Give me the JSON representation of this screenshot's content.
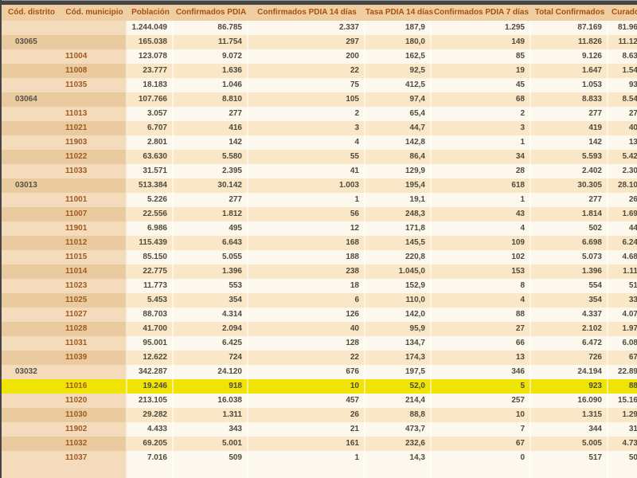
{
  "app": {
    "description_label": "COVID municipal statistics table (Spanish)",
    "selected_row_municipio": "11016"
  },
  "colors": {
    "window_edge": "#454545",
    "header_bg": "#EFCEA3",
    "header_text": "#A5520E",
    "tan_light": "#F3DBBC",
    "tan_dark": "#EACA9F",
    "data_light": "#FDF8ED",
    "data_dark": "#FAE7C7",
    "highlight_yellow": "#F0E306",
    "number_text": "#4F4A3B",
    "municipio_text": "#A15A1E",
    "district_text": "#57524A"
  },
  "table": {
    "columns": [
      {
        "key": "distrito",
        "label": "Cód. distrito"
      },
      {
        "key": "municipio",
        "label": "Cód. municipio"
      },
      {
        "key": "poblacion",
        "label": "Población"
      },
      {
        "key": "confirmados_pdia",
        "label": "Confirmados PDIA"
      },
      {
        "key": "confirmados_pdia_14",
        "label": "Confirmados PDIA 14 días"
      },
      {
        "key": "tasa_pdia_14",
        "label": "Tasa PDIA 14 días"
      },
      {
        "key": "confirmados_pdia_7",
        "label": "Confirmados PDIA 7 días"
      },
      {
        "key": "total_confirmados",
        "label": "Total Confirmados"
      },
      {
        "key": "curados",
        "label": "Curados"
      }
    ],
    "note": "Last column is clipped by the right screen edge; curados values are the visible partial digits only.",
    "rows": [
      {
        "cells": [
          "",
          "",
          "1.244.049",
          "86.785",
          "2.337",
          "187,9",
          "1.295",
          "87.169",
          "81.96"
        ],
        "highlight": false
      },
      {
        "cells": [
          "03065",
          "",
          "165.038",
          "11.754",
          "297",
          "180,0",
          "149",
          "11.826",
          "11.12"
        ],
        "highlight": false
      },
      {
        "cells": [
          "",
          "11004",
          "123.078",
          "9.072",
          "200",
          "162,5",
          "85",
          "9.126",
          "8.63"
        ],
        "highlight": false
      },
      {
        "cells": [
          "",
          "11008",
          "23.777",
          "1.636",
          "22",
          "92,5",
          "19",
          "1.647",
          "1.54"
        ],
        "highlight": false
      },
      {
        "cells": [
          "",
          "11035",
          "18.183",
          "1.046",
          "75",
          "412,5",
          "45",
          "1.053",
          "93"
        ],
        "highlight": false
      },
      {
        "cells": [
          "03064",
          "",
          "107.766",
          "8.810",
          "105",
          "97,4",
          "68",
          "8.833",
          "8.54"
        ],
        "highlight": false
      },
      {
        "cells": [
          "",
          "11013",
          "3.057",
          "277",
          "2",
          "65,4",
          "2",
          "277",
          "27"
        ],
        "highlight": false
      },
      {
        "cells": [
          "",
          "11021",
          "6.707",
          "416",
          "3",
          "44,7",
          "3",
          "419",
          "40"
        ],
        "highlight": false
      },
      {
        "cells": [
          "",
          "11903",
          "2.801",
          "142",
          "4",
          "142,8",
          "1",
          "142",
          "13"
        ],
        "highlight": false
      },
      {
        "cells": [
          "",
          "11022",
          "63.630",
          "5.580",
          "55",
          "86,4",
          "34",
          "5.593",
          "5.42"
        ],
        "highlight": false
      },
      {
        "cells": [
          "",
          "11033",
          "31.571",
          "2.395",
          "41",
          "129,9",
          "28",
          "2.402",
          "2.30"
        ],
        "highlight": false
      },
      {
        "cells": [
          "03013",
          "",
          "513.384",
          "30.142",
          "1.003",
          "195,4",
          "618",
          "30.305",
          "28.10"
        ],
        "highlight": false
      },
      {
        "cells": [
          "",
          "11001",
          "5.226",
          "277",
          "1",
          "19,1",
          "1",
          "277",
          "26"
        ],
        "highlight": false
      },
      {
        "cells": [
          "",
          "11007",
          "22.556",
          "1.812",
          "56",
          "248,3",
          "43",
          "1.814",
          "1.69"
        ],
        "highlight": false
      },
      {
        "cells": [
          "",
          "11901",
          "6.986",
          "495",
          "12",
          "171,8",
          "4",
          "502",
          "44"
        ],
        "highlight": false
      },
      {
        "cells": [
          "",
          "11012",
          "115.439",
          "6.643",
          "168",
          "145,5",
          "109",
          "6.698",
          "6.24"
        ],
        "highlight": false
      },
      {
        "cells": [
          "",
          "11015",
          "85.150",
          "5.055",
          "188",
          "220,8",
          "102",
          "5.073",
          "4.68"
        ],
        "highlight": false
      },
      {
        "cells": [
          "",
          "11014",
          "22.775",
          "1.396",
          "238",
          "1.045,0",
          "153",
          "1.396",
          "1.11"
        ],
        "highlight": false
      },
      {
        "cells": [
          "",
          "11023",
          "11.773",
          "553",
          "18",
          "152,9",
          "8",
          "554",
          "51"
        ],
        "highlight": false
      },
      {
        "cells": [
          "",
          "11025",
          "5.453",
          "354",
          "6",
          "110,0",
          "4",
          "354",
          "33"
        ],
        "highlight": false
      },
      {
        "cells": [
          "",
          "11027",
          "88.703",
          "4.314",
          "126",
          "142,0",
          "88",
          "4.337",
          "4.07"
        ],
        "highlight": false
      },
      {
        "cells": [
          "",
          "11028",
          "41.700",
          "2.094",
          "40",
          "95,9",
          "27",
          "2.102",
          "1.97"
        ],
        "highlight": false
      },
      {
        "cells": [
          "",
          "11031",
          "95.001",
          "6.425",
          "128",
          "134,7",
          "66",
          "6.472",
          "6.08"
        ],
        "highlight": false
      },
      {
        "cells": [
          "",
          "11039",
          "12.622",
          "724",
          "22",
          "174,3",
          "13",
          "726",
          "67"
        ],
        "highlight": false
      },
      {
        "cells": [
          "03032",
          "",
          "342.287",
          "24.120",
          "676",
          "197,5",
          "346",
          "24.194",
          "22.89"
        ],
        "highlight": false
      },
      {
        "cells": [
          "",
          "11016",
          "19.246",
          "918",
          "10",
          "52,0",
          "5",
          "923",
          "88"
        ],
        "highlight": true
      },
      {
        "cells": [
          "",
          "11020",
          "213.105",
          "16.038",
          "457",
          "214,4",
          "257",
          "16.090",
          "15.16"
        ],
        "highlight": false
      },
      {
        "cells": [
          "",
          "11030",
          "29.282",
          "1.311",
          "26",
          "88,8",
          "10",
          "1.315",
          "1.29"
        ],
        "highlight": false
      },
      {
        "cells": [
          "",
          "11902",
          "4.433",
          "343",
          "21",
          "473,7",
          "7",
          "344",
          "31"
        ],
        "highlight": false
      },
      {
        "cells": [
          "",
          "11032",
          "69.205",
          "5.001",
          "161",
          "232,6",
          "67",
          "5.005",
          "4.73"
        ],
        "highlight": false
      },
      {
        "cells": [
          "",
          "11037",
          "7.016",
          "509",
          "1",
          "14,3",
          "0",
          "517",
          "50"
        ],
        "highlight": false
      }
    ]
  }
}
